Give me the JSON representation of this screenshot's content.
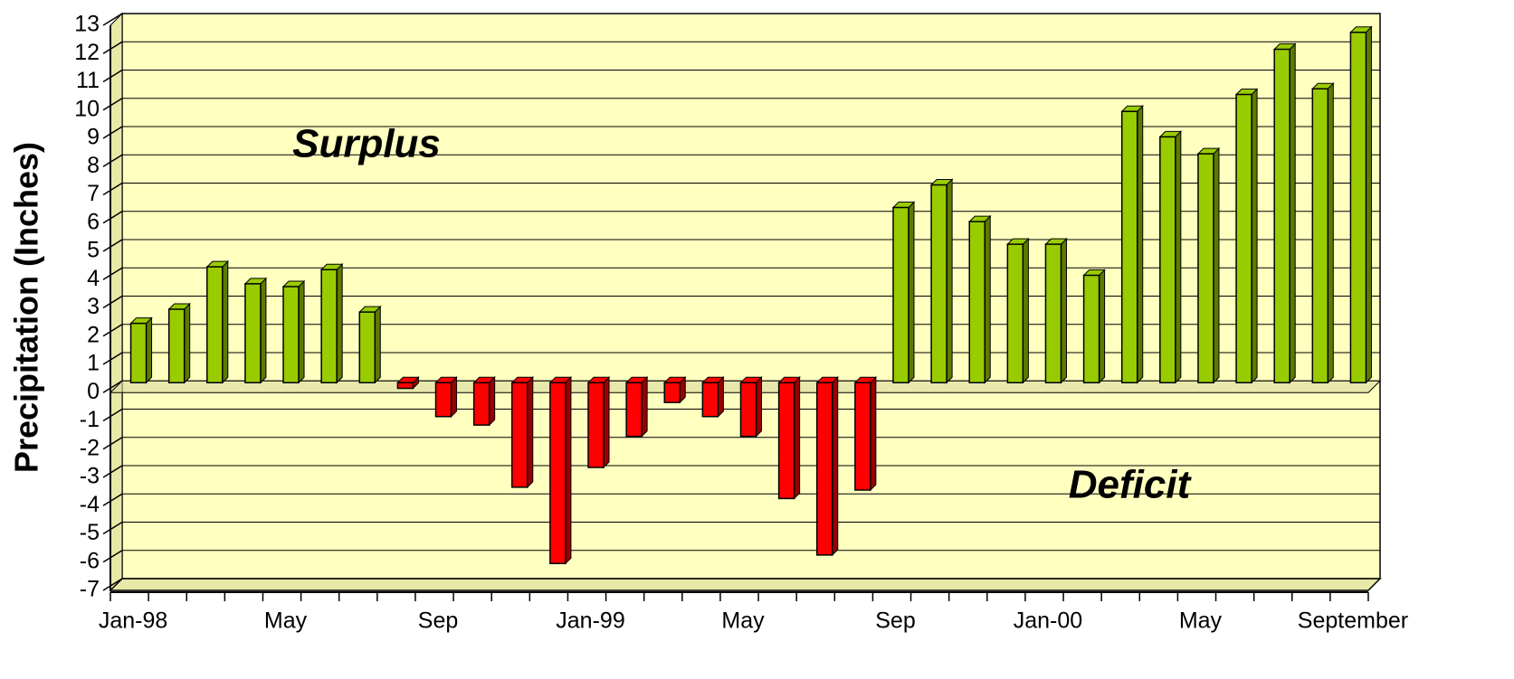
{
  "chart_data": {
    "type": "bar",
    "y_label": "Precipitation (Inches)",
    "annotations": [
      "Surplus",
      "Deficit"
    ],
    "categories": [
      "Jan-98",
      null,
      null,
      null,
      "May",
      null,
      null,
      null,
      "Sep",
      null,
      null,
      null,
      "Jan-99",
      null,
      null,
      null,
      "May",
      null,
      null,
      null,
      "Sep",
      null,
      null,
      null,
      "Jan-00",
      null,
      null,
      null,
      "May",
      null,
      null,
      null,
      "September"
    ],
    "values": [
      2.1,
      2.6,
      4.1,
      3.5,
      3.4,
      4.0,
      2.5,
      -0.2,
      -1.2,
      -1.5,
      -3.7,
      -6.4,
      -3.0,
      -1.9,
      -0.7,
      -1.2,
      -1.9,
      -4.1,
      -6.1,
      -3.8,
      6.2,
      7.0,
      5.7,
      4.9,
      4.9,
      3.8,
      9.6,
      8.7,
      8.1,
      10.2,
      11.8,
      10.4,
      12.4
    ],
    "positive_color": "#99cc00",
    "negative_color": "#ff0000",
    "ylim": [
      -7,
      13
    ],
    "yticks": [
      -7,
      -6,
      -5,
      -4,
      -3,
      -2,
      -1,
      0,
      1,
      2,
      3,
      4,
      5,
      6,
      7,
      8,
      9,
      10,
      11,
      12,
      13
    ],
    "grid": true
  }
}
